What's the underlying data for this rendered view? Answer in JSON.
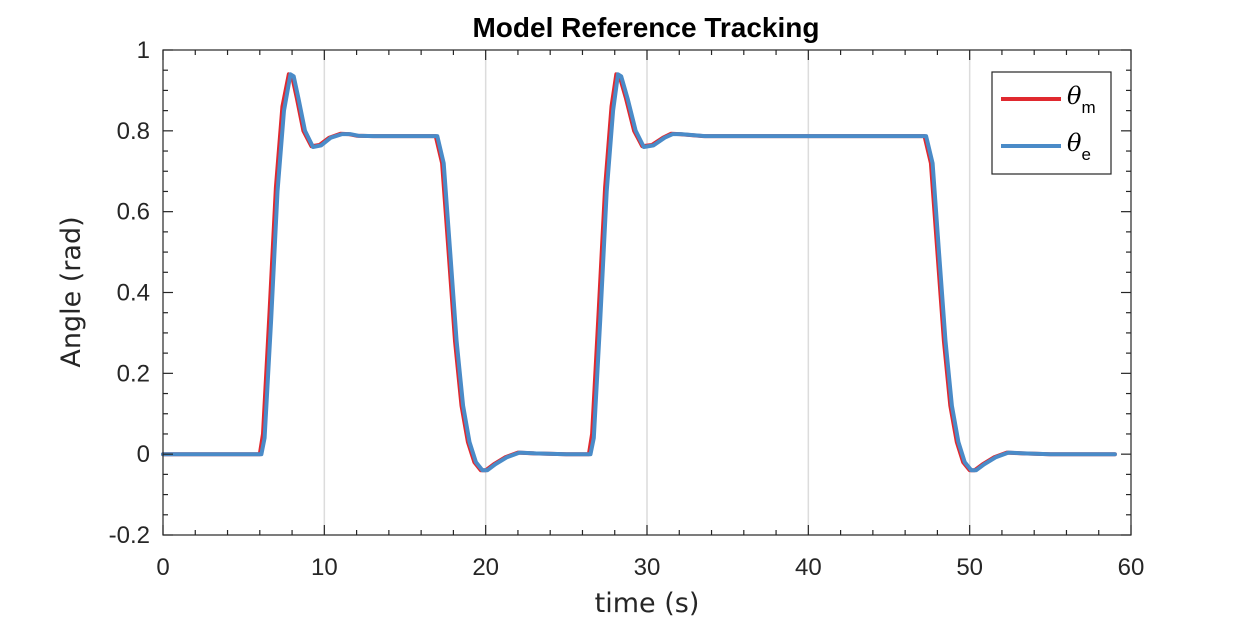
{
  "chart_data": {
    "type": "line",
    "title": "Model Reference Tracking",
    "xlabel": "time (s)",
    "ylabel": "Angle (rad)",
    "xlim": [
      0,
      60
    ],
    "ylim": [
      -0.2,
      1
    ],
    "xticks": [
      0,
      10,
      20,
      30,
      40,
      50,
      60
    ],
    "xtick_labels": [
      "0",
      "10",
      "20",
      "30",
      "40",
      "50",
      "60"
    ],
    "yticks": [
      -0.2,
      0,
      0.2,
      0.4,
      0.6,
      0.8,
      1
    ],
    "ytick_labels": [
      "-0.2",
      "0",
      "0.2",
      "0.4",
      "0.6",
      "0.8",
      "1"
    ],
    "grid": "vertical lines at major x ticks",
    "legend_position": "top-right",
    "series": [
      {
        "name": "θm",
        "legend_symbol": "θ",
        "legend_subscript": "m",
        "color": "#e0292f",
        "x": [
          0,
          6.0,
          6.2,
          6.6,
          7.0,
          7.4,
          7.8,
          8.0,
          8.3,
          8.7,
          9.2,
          9.7,
          10.3,
          11.0,
          11.5,
          12.0,
          13.0,
          15.0,
          16.9,
          17.3,
          17.7,
          18.1,
          18.5,
          18.9,
          19.3,
          19.7,
          20.0,
          20.5,
          21.2,
          22.0,
          23.0,
          25.0,
          26.4,
          26.6,
          27.0,
          27.4,
          27.8,
          28.1,
          28.3,
          28.7,
          29.2,
          29.7,
          30.3,
          31.0,
          31.5,
          32.0,
          33.5,
          40.0,
          47.2,
          47.6,
          48.0,
          48.4,
          48.8,
          49.2,
          49.6,
          50.0,
          50.3,
          50.8,
          51.5,
          52.3,
          53.3,
          55.0,
          59.0
        ],
        "y": [
          0,
          0,
          0.05,
          0.35,
          0.66,
          0.86,
          0.94,
          0.935,
          0.88,
          0.8,
          0.762,
          0.765,
          0.783,
          0.793,
          0.792,
          0.788,
          0.787,
          0.787,
          0.787,
          0.72,
          0.5,
          0.28,
          0.12,
          0.03,
          -0.02,
          -0.04,
          -0.04,
          -0.025,
          -0.008,
          0.004,
          0.002,
          0.0,
          0.0,
          0.05,
          0.35,
          0.66,
          0.86,
          0.94,
          0.935,
          0.88,
          0.8,
          0.762,
          0.765,
          0.783,
          0.793,
          0.792,
          0.787,
          0.787,
          0.787,
          0.72,
          0.5,
          0.28,
          0.12,
          0.03,
          -0.02,
          -0.04,
          -0.04,
          -0.025,
          -0.008,
          0.004,
          0.002,
          0.0,
          0.0
        ]
      },
      {
        "name": "θe",
        "legend_symbol": "θ",
        "legend_subscript": "e",
        "color": "#4a8bc8",
        "x": [
          0,
          6.1,
          6.3,
          6.7,
          7.1,
          7.5,
          7.9,
          8.1,
          8.4,
          8.8,
          9.3,
          9.8,
          10.4,
          11.1,
          11.6,
          12.1,
          13.1,
          15.0,
          17.0,
          17.4,
          17.8,
          18.2,
          18.6,
          19.0,
          19.4,
          19.8,
          20.1,
          20.6,
          21.3,
          22.1,
          23.1,
          25.0,
          26.5,
          26.7,
          27.1,
          27.5,
          27.9,
          28.2,
          28.4,
          28.8,
          29.3,
          29.8,
          30.4,
          31.1,
          31.6,
          32.1,
          33.6,
          40.0,
          47.3,
          47.7,
          48.1,
          48.5,
          48.9,
          49.3,
          49.7,
          50.1,
          50.4,
          50.9,
          51.6,
          52.4,
          53.4,
          55.0,
          59.0
        ],
        "y": [
          0,
          0,
          0.04,
          0.33,
          0.65,
          0.85,
          0.94,
          0.935,
          0.88,
          0.8,
          0.76,
          0.764,
          0.783,
          0.792,
          0.792,
          0.788,
          0.787,
          0.787,
          0.787,
          0.72,
          0.5,
          0.28,
          0.12,
          0.03,
          -0.02,
          -0.04,
          -0.04,
          -0.025,
          -0.008,
          0.004,
          0.002,
          0.0,
          0.0,
          0.04,
          0.33,
          0.65,
          0.85,
          0.94,
          0.935,
          0.88,
          0.8,
          0.76,
          0.764,
          0.783,
          0.792,
          0.792,
          0.787,
          0.787,
          0.787,
          0.72,
          0.5,
          0.28,
          0.12,
          0.03,
          -0.02,
          -0.04,
          -0.04,
          -0.025,
          -0.008,
          0.004,
          0.002,
          0.0,
          0.0
        ]
      }
    ]
  }
}
